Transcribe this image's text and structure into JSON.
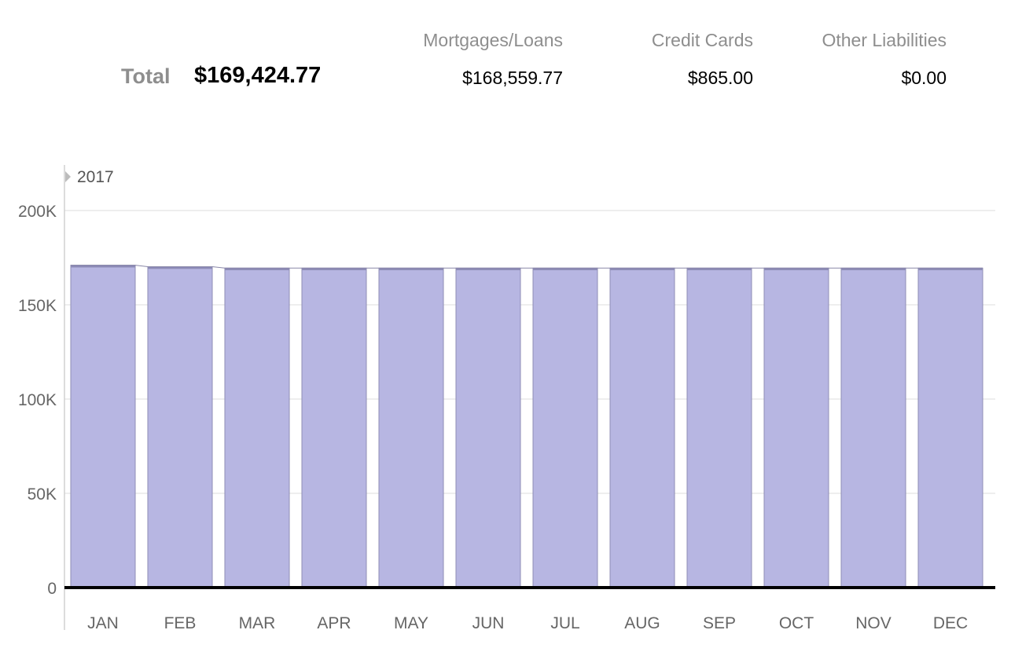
{
  "summary": {
    "total_label": "Total",
    "total_value": "$169,424.77",
    "columns": [
      {
        "header": "Mortgages/Loans",
        "value": "$168,559.77"
      },
      {
        "header": "Credit Cards",
        "value": "$865.00"
      },
      {
        "header": "Other Liabilities",
        "value": "$0.00"
      }
    ]
  },
  "chart_data": {
    "type": "bar",
    "year_label": "2017",
    "categories": [
      "JAN",
      "FEB",
      "MAR",
      "APR",
      "MAY",
      "JUN",
      "JUL",
      "AUG",
      "SEP",
      "OCT",
      "NOV",
      "DEC"
    ],
    "series": [
      {
        "values": [
          170000,
          169300,
          168600,
          168600,
          168600,
          168600,
          168600,
          168600,
          168600,
          168600,
          168600,
          168600
        ]
      },
      {
        "values": [
          1000,
          900,
          865,
          865,
          865,
          865,
          865,
          865,
          865,
          865,
          865,
          865
        ]
      }
    ],
    "yticks": [
      {
        "value": 0,
        "label": "0"
      },
      {
        "value": 50000,
        "label": "50K"
      },
      {
        "value": 100000,
        "label": "100K"
      },
      {
        "value": 150000,
        "label": "150K"
      },
      {
        "value": 200000,
        "label": "200K"
      }
    ],
    "ylim": [
      0,
      225000
    ],
    "grid": true,
    "colors": {
      "bar": "#b7b6e2",
      "bar_top": "#8a88b8",
      "bar_stroke": "#8f8eb5",
      "axis": "#000000",
      "grid": "#e8e8e8"
    }
  }
}
